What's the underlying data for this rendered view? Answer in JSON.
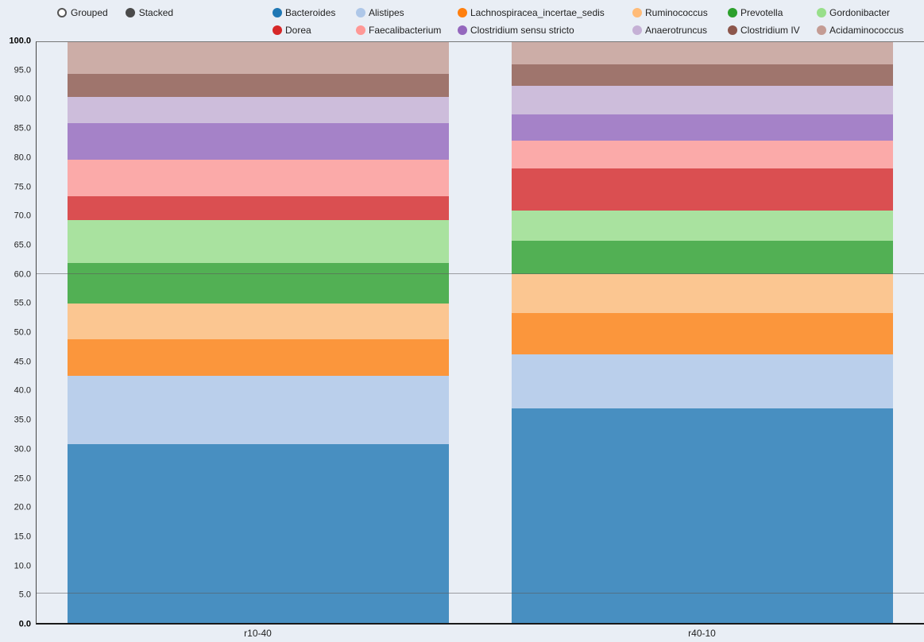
{
  "controls": {
    "modes": [
      {
        "label": "Grouped",
        "selected": false
      },
      {
        "label": "Stacked",
        "selected": true
      }
    ]
  },
  "chart_data": {
    "type": "bar",
    "stacked": true,
    "title": "",
    "xlabel": "",
    "ylabel": "",
    "legend_position": "top",
    "categories": [
      "r10-40",
      "r40-10"
    ],
    "series": [
      {
        "name": "Bacteroides",
        "color": "#1f77b4",
        "values": [
          30.8,
          37.0
        ]
      },
      {
        "name": "Alistipes",
        "color": "#aec7e8",
        "values": [
          11.7,
          9.2
        ]
      },
      {
        "name": "Lachnospiracea_incertae_sedis",
        "color": "#ff7f0e",
        "values": [
          6.3,
          7.1
        ]
      },
      {
        "name": "Ruminococcus",
        "color": "#ffbb78",
        "values": [
          6.2,
          6.8
        ]
      },
      {
        "name": "Prevotella",
        "color": "#2ca02c",
        "values": [
          7.0,
          5.7
        ]
      },
      {
        "name": "Gordonibacter",
        "color": "#98df8a",
        "values": [
          7.3,
          5.2
        ]
      },
      {
        "name": "Dorea",
        "color": "#d62728",
        "values": [
          4.2,
          7.2
        ]
      },
      {
        "name": "Faecalibacterium",
        "color": "#ff9896",
        "values": [
          6.3,
          4.8
        ]
      },
      {
        "name": "Clostridium sensu stricto",
        "color": "#9467bd",
        "values": [
          6.2,
          4.6
        ]
      },
      {
        "name": "Anaerotruncus",
        "color": "#c5b0d5",
        "values": [
          4.6,
          4.9
        ]
      },
      {
        "name": "Clostridium IV",
        "color": "#8c564b",
        "values": [
          4.0,
          3.7
        ]
      },
      {
        "name": "Acidaminococcus",
        "color": "#c49c94",
        "values": [
          5.4,
          3.8
        ]
      }
    ],
    "ylim": [
      0,
      100
    ],
    "yticks": [
      "0.0",
      "5.0",
      "10.0",
      "15.0",
      "20.0",
      "25.0",
      "30.0",
      "35.0",
      "40.0",
      "45.0",
      "50.0",
      "55.0",
      "60.0",
      "65.0",
      "70.0",
      "75.0",
      "80.0",
      "85.0",
      "90.0",
      "95.0",
      "100.0"
    ],
    "reference_lines": [
      60,
      5
    ],
    "grid": false,
    "bar_opacity": 0.8
  }
}
